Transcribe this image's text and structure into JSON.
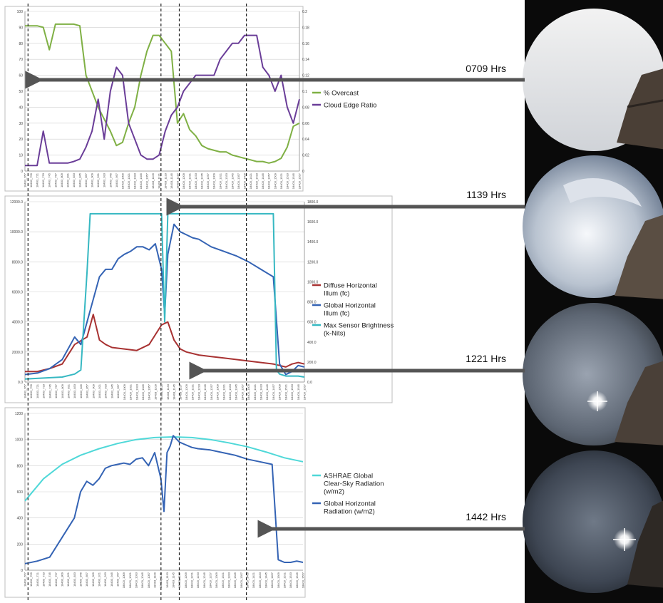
{
  "time_labels": [
    "0709 Hrs",
    "1139 Hrs",
    "1221 Hrs",
    "1442 Hrs"
  ],
  "colors": {
    "overcast": "#7fb044",
    "cloud_edge": "#6a3d98",
    "diffuse": "#a83232",
    "global": "#3463b4",
    "max_sensor": "#36b8c2",
    "ashrae": "#4fd8d8",
    "arrow": "#555555"
  },
  "x_tick_labels": [
    "18403_657",
    "18403_709",
    "18403_721",
    "18403_733",
    "18403_745",
    "18403_757",
    "18403_809",
    "18403_821",
    "18403_833",
    "18403_845",
    "18403_857",
    "18403_909",
    "18403_921",
    "18403_933",
    "18403_945",
    "18403_957",
    "18403_1009",
    "18403_1021",
    "18403_1033",
    "18403_1045",
    "18403_1057",
    "18403_1109",
    "18403_1121",
    "18403_1133",
    "18403_1145",
    "18403_1157",
    "18403_1209",
    "18403_1221",
    "18403_1233",
    "18403_1245",
    "18403_1257",
    "18403_1309",
    "18403_1321",
    "18403_1333",
    "18403_1345",
    "18403_1357",
    "18403_1409",
    "18403_1421",
    "18403_1433",
    "18403_1445",
    "18403_1457",
    "18403_1509",
    "18403_1521",
    "18403_1533",
    "18403_1545",
    "18403_1557"
  ],
  "chart_data": [
    {
      "type": "line",
      "legend": [
        "% Overcast",
        "Cloud Edge Ratio"
      ],
      "ylim_left": [
        0,
        100
      ],
      "yticks_left": [
        "0",
        "10",
        "20",
        "30",
        "40",
        "50",
        "60",
        "70",
        "80",
        "90",
        "100"
      ],
      "ylim_right": [
        0,
        0.2
      ],
      "yticks_right": [
        "0",
        "0.02",
        "0.04",
        "0.06",
        "0.08",
        "0.1",
        "0.12",
        "0.14",
        "0.16",
        "0.18",
        "0.2"
      ],
      "series": [
        {
          "name": "% Overcast",
          "axis": "left",
          "x": [
            0,
            2,
            3,
            4,
            5,
            6,
            7,
            8,
            9,
            10,
            12,
            14,
            15,
            16,
            17,
            18,
            19,
            20,
            21,
            22,
            23,
            24,
            25,
            26,
            27,
            28,
            29,
            30,
            31,
            32,
            33,
            34,
            35,
            36,
            37,
            38,
            39,
            40,
            41,
            42,
            43,
            44,
            45
          ],
          "values": [
            91,
            91,
            90,
            76,
            92,
            92,
            92,
            92,
            91,
            60,
            40,
            25,
            16,
            18,
            30,
            40,
            60,
            75,
            85,
            85,
            80,
            75,
            30,
            36,
            26,
            22,
            16,
            14,
            13,
            12,
            12,
            10,
            9,
            8,
            7,
            6,
            6,
            5,
            6,
            8,
            15,
            28,
            30
          ]
        },
        {
          "name": "Cloud Edge Ratio",
          "axis": "right",
          "x": [
            0,
            2,
            3,
            4,
            5,
            6,
            7,
            8,
            9,
            10,
            11,
            12,
            13,
            14,
            15,
            16,
            17,
            18,
            19,
            20,
            21,
            22,
            23,
            24,
            25,
            26,
            27,
            28,
            29,
            30,
            31,
            32,
            33,
            34,
            35,
            36,
            37,
            38,
            39,
            40,
            41,
            42,
            43,
            44,
            45
          ],
          "values": [
            0.007,
            0.007,
            0.05,
            0.01,
            0.01,
            0.01,
            0.01,
            0.012,
            0.015,
            0.03,
            0.05,
            0.09,
            0.04,
            0.1,
            0.13,
            0.12,
            0.06,
            0.04,
            0.02,
            0.015,
            0.015,
            0.02,
            0.05,
            0.07,
            0.08,
            0.1,
            0.11,
            0.12,
            0.12,
            0.12,
            0.12,
            0.14,
            0.15,
            0.16,
            0.16,
            0.17,
            0.17,
            0.17,
            0.13,
            0.12,
            0.1,
            0.12,
            0.08,
            0.06,
            0.09
          ]
        }
      ]
    },
    {
      "type": "line",
      "legend": [
        "Diffuse Horizontal Illum (fc)",
        "Global Horizontal Illum (fc)",
        "Max Sensor Brightness (k-Nits)"
      ],
      "ylim_left": [
        0,
        12000
      ],
      "yticks_left": [
        "0.0",
        "2000.0",
        "4000.0",
        "6000.0",
        "8000.0",
        "10000.0",
        "12000.0"
      ],
      "ylim_right": [
        0,
        1800
      ],
      "yticks_right": [
        "0.0",
        "200.0",
        "400.0",
        "600.0",
        "800.0",
        "1000.0",
        "1200.0",
        "1400.0",
        "1600.0",
        "1800.0"
      ],
      "series": [
        {
          "name": "Diffuse Horizontal Illum (fc)",
          "axis": "left",
          "x": [
            0,
            2,
            4,
            6,
            8,
            10,
            11,
            12,
            13,
            14,
            16,
            18,
            20,
            22,
            23,
            24,
            25,
            26,
            28,
            30,
            32,
            34,
            36,
            38,
            40,
            42,
            43,
            44,
            45
          ],
          "values": [
            700,
            700,
            900,
            1200,
            2500,
            3000,
            4500,
            2800,
            2500,
            2300,
            2200,
            2100,
            2500,
            3800,
            4000,
            2800,
            2200,
            2000,
            1800,
            1700,
            1600,
            1500,
            1400,
            1300,
            1200,
            1000,
            1200,
            1300,
            1200
          ]
        },
        {
          "name": "Global Horizontal Illum (fc)",
          "axis": "left",
          "x": [
            0,
            2,
            4,
            6,
            8,
            9,
            10,
            11,
            12,
            13,
            14,
            15,
            16,
            17,
            18,
            19,
            20,
            21,
            22,
            22.5,
            23,
            23.5,
            24,
            25,
            26,
            27,
            28,
            30,
            32,
            34,
            36,
            38,
            40,
            41,
            42,
            43,
            44,
            45
          ],
          "values": [
            500,
            600,
            900,
            1500,
            3000,
            2500,
            4000,
            5500,
            7000,
            7500,
            7500,
            8200,
            8500,
            8700,
            9000,
            9000,
            8800,
            9200,
            7500,
            4500,
            8500,
            9500,
            10500,
            10000,
            9800,
            9600,
            9500,
            9000,
            8700,
            8400,
            8000,
            7500,
            7000,
            1200,
            500,
            700,
            1100,
            1000
          ]
        },
        {
          "name": "Max Sensor Brightness (k-Nits)",
          "axis": "right",
          "x": [
            0,
            6,
            8,
            9,
            10,
            10.5,
            11,
            12,
            14,
            16,
            18,
            20,
            22,
            22.5,
            23,
            23.5,
            24,
            26,
            28,
            30,
            32,
            34,
            36,
            38,
            40,
            40.5,
            41,
            42,
            43,
            44,
            45
          ],
          "values": [
            30,
            50,
            80,
            120,
            1100,
            1680,
            1680,
            1680,
            1680,
            1680,
            1680,
            1680,
            1680,
            600,
            1680,
            1680,
            1680,
            1680,
            1680,
            1680,
            1680,
            1680,
            1680,
            1680,
            1680,
            120,
            80,
            60,
            60,
            60,
            50
          ]
        }
      ]
    },
    {
      "type": "line",
      "legend": [
        "ASHRAE Global Clear-Sky Radiation (w/m2)",
        "Global Horizontal Radiation (w/m2)"
      ],
      "ylim": [
        0,
        1200
      ],
      "yticks": [
        "0",
        "200",
        "400",
        "600",
        "800",
        "1000",
        "1200"
      ],
      "series": [
        {
          "name": "ASHRAE Global Clear-Sky Radiation (w/m2)",
          "x": [
            0,
            3,
            6,
            9,
            12,
            15,
            18,
            21,
            24,
            27,
            30,
            33,
            36,
            39,
            42,
            45
          ],
          "values": [
            530,
            700,
            810,
            880,
            930,
            970,
            1000,
            1015,
            1020,
            1015,
            1000,
            975,
            945,
            905,
            860,
            830
          ]
        },
        {
          "name": "Global Horizontal Radiation (w/m2)",
          "x": [
            0,
            2,
            4,
            6,
            8,
            9,
            10,
            11,
            12,
            13,
            14,
            15,
            16,
            17,
            18,
            19,
            20,
            21,
            22,
            22.5,
            23,
            23.5,
            24,
            25,
            26,
            27,
            28,
            30,
            32,
            34,
            36,
            38,
            40,
            41,
            42,
            43,
            44,
            45
          ],
          "values": [
            50,
            70,
            100,
            250,
            400,
            600,
            680,
            650,
            700,
            780,
            800,
            810,
            820,
            810,
            850,
            860,
            800,
            900,
            700,
            450,
            900,
            950,
            1030,
            980,
            960,
            940,
            930,
            920,
            900,
            880,
            850,
            830,
            810,
            80,
            60,
            60,
            70,
            60
          ]
        }
      ]
    }
  ]
}
